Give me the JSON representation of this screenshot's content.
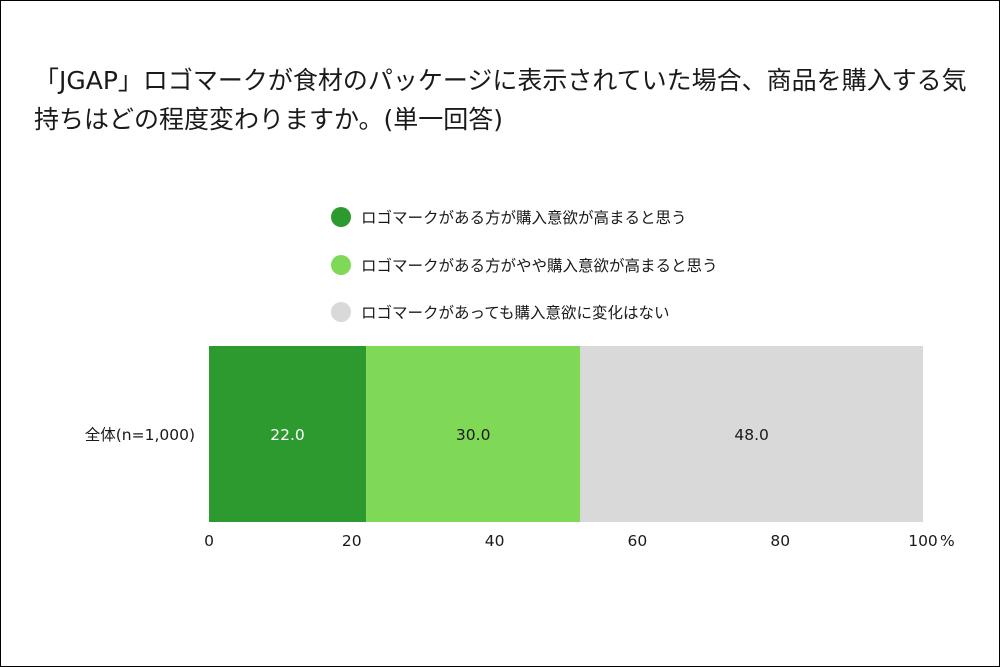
{
  "chart_data": {
    "type": "bar",
    "stacked": true,
    "orientation": "horizontal",
    "title": "「JGAP」ロゴマークが食材のパッケージに表示されていた場合、商品を購入する気持ちはどの程度変わりますか。(単一回答)",
    "categories": [
      "全体(n=1,000)"
    ],
    "series": [
      {
        "name": "ロゴマークがある方が購入意欲が高まると思う",
        "values": [
          22.0
        ],
        "color": "#2c9a2f",
        "label_color": "#ffffff"
      },
      {
        "name": "ロゴマークがある方がやや購入意欲が高まると思う",
        "values": [
          30.0
        ],
        "color": "#7fd957",
        "label_color": "#1a1a1a"
      },
      {
        "name": "ロゴマークがあっても購入意欲に変化はない",
        "values": [
          48.0
        ],
        "color": "#d9d9d9",
        "label_color": "#1a1a1a"
      }
    ],
    "x_ticks": [
      "0",
      "20",
      "40",
      "60",
      "80",
      "100"
    ],
    "x_unit": "%",
    "xlim": [
      0,
      100
    ],
    "grid": false,
    "legend_position": "top"
  }
}
